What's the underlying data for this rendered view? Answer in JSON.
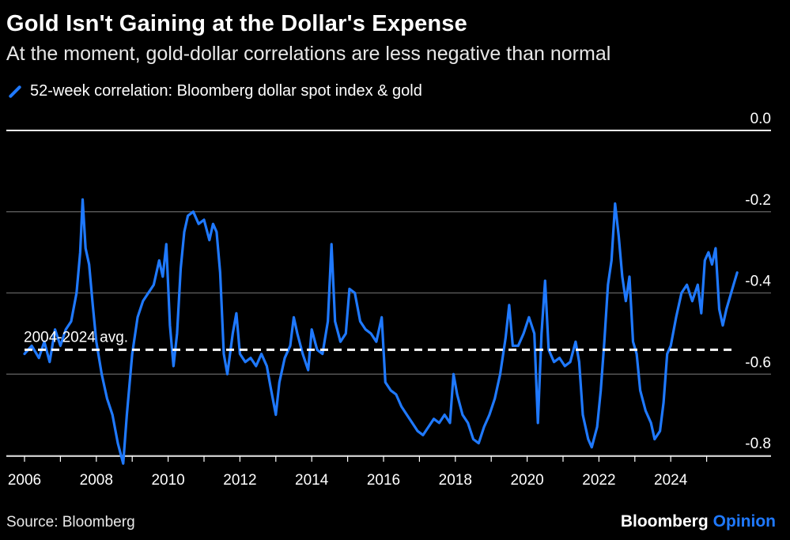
{
  "title": "Gold Isn't Gaining at the Dollar's Expense",
  "subtitle": "At the moment, gold-dollar correlations are less negative than normal",
  "source": "Source: Bloomberg",
  "brand": {
    "name": "Bloomberg",
    "suffix": "Opinion"
  },
  "colors": {
    "series": "#1f79ff",
    "background": "#000000",
    "grid": "#555555",
    "text": "#ffffff"
  },
  "chart_data": {
    "type": "line",
    "title": "Gold Isn't Gaining at the Dollar's Expense",
    "subtitle": "At the moment, gold-dollar correlations are less negative than normal",
    "xlabel": "",
    "ylabel": "",
    "xlim": [
      2006,
      2026
    ],
    "ylim": [
      -0.8,
      0.0
    ],
    "y_ticks": [
      0.0,
      -0.2,
      -0.4,
      -0.6,
      -0.8
    ],
    "y_tick_labels": [
      "0.0",
      "-0.2",
      "-0.4",
      "-0.6",
      "-0.8"
    ],
    "x_ticks": [
      2006,
      2008,
      2010,
      2012,
      2014,
      2016,
      2018,
      2020,
      2022,
      2024
    ],
    "x_tick_labels": [
      "2006",
      "2008",
      "2010",
      "2012",
      "2014",
      "2016",
      "2018",
      "2020",
      "2022",
      "2024"
    ],
    "y_axis_position": "right",
    "grid": true,
    "legend_position": "top-left",
    "series": [
      {
        "name": "52-week correlation: Bloomberg dollar spot index & gold",
        "color": "#1f79ff",
        "points": [
          [
            2006.0,
            -0.55
          ],
          [
            2006.2,
            -0.53
          ],
          [
            2006.4,
            -0.56
          ],
          [
            2006.55,
            -0.52
          ],
          [
            2006.7,
            -0.57
          ],
          [
            2006.85,
            -0.49
          ],
          [
            2007.0,
            -0.53
          ],
          [
            2007.15,
            -0.49
          ],
          [
            2007.3,
            -0.47
          ],
          [
            2007.45,
            -0.4
          ],
          [
            2007.55,
            -0.3
          ],
          [
            2007.62,
            -0.17
          ],
          [
            2007.7,
            -0.29
          ],
          [
            2007.8,
            -0.33
          ],
          [
            2007.9,
            -0.43
          ],
          [
            2008.0,
            -0.52
          ],
          [
            2008.15,
            -0.6
          ],
          [
            2008.3,
            -0.66
          ],
          [
            2008.45,
            -0.7
          ],
          [
            2008.6,
            -0.77
          ],
          [
            2008.75,
            -0.82
          ],
          [
            2008.85,
            -0.7
          ],
          [
            2009.0,
            -0.55
          ],
          [
            2009.15,
            -0.46
          ],
          [
            2009.3,
            -0.42
          ],
          [
            2009.45,
            -0.4
          ],
          [
            2009.6,
            -0.38
          ],
          [
            2009.75,
            -0.32
          ],
          [
            2009.85,
            -0.36
          ],
          [
            2009.95,
            -0.28
          ],
          [
            2010.05,
            -0.48
          ],
          [
            2010.15,
            -0.58
          ],
          [
            2010.25,
            -0.5
          ],
          [
            2010.35,
            -0.34
          ],
          [
            2010.45,
            -0.25
          ],
          [
            2010.55,
            -0.21
          ],
          [
            2010.7,
            -0.2
          ],
          [
            2010.85,
            -0.23
          ],
          [
            2011.0,
            -0.22
          ],
          [
            2011.15,
            -0.27
          ],
          [
            2011.25,
            -0.23
          ],
          [
            2011.35,
            -0.25
          ],
          [
            2011.45,
            -0.35
          ],
          [
            2011.55,
            -0.55
          ],
          [
            2011.65,
            -0.6
          ],
          [
            2011.8,
            -0.5
          ],
          [
            2011.9,
            -0.45
          ],
          [
            2012.0,
            -0.55
          ],
          [
            2012.15,
            -0.57
          ],
          [
            2012.3,
            -0.56
          ],
          [
            2012.45,
            -0.58
          ],
          [
            2012.6,
            -0.55
          ],
          [
            2012.75,
            -0.58
          ],
          [
            2012.85,
            -0.63
          ],
          [
            2013.0,
            -0.7
          ],
          [
            2013.1,
            -0.62
          ],
          [
            2013.25,
            -0.56
          ],
          [
            2013.4,
            -0.53
          ],
          [
            2013.5,
            -0.46
          ],
          [
            2013.6,
            -0.5
          ],
          [
            2013.75,
            -0.55
          ],
          [
            2013.9,
            -0.59
          ],
          [
            2014.0,
            -0.49
          ],
          [
            2014.15,
            -0.54
          ],
          [
            2014.3,
            -0.55
          ],
          [
            2014.45,
            -0.47
          ],
          [
            2014.55,
            -0.28
          ],
          [
            2014.65,
            -0.47
          ],
          [
            2014.8,
            -0.52
          ],
          [
            2014.95,
            -0.5
          ],
          [
            2015.05,
            -0.39
          ],
          [
            2015.2,
            -0.4
          ],
          [
            2015.35,
            -0.47
          ],
          [
            2015.5,
            -0.49
          ],
          [
            2015.65,
            -0.5
          ],
          [
            2015.8,
            -0.52
          ],
          [
            2015.95,
            -0.46
          ],
          [
            2016.05,
            -0.62
          ],
          [
            2016.2,
            -0.64
          ],
          [
            2016.35,
            -0.65
          ],
          [
            2016.5,
            -0.68
          ],
          [
            2016.65,
            -0.7
          ],
          [
            2016.8,
            -0.72
          ],
          [
            2016.95,
            -0.74
          ],
          [
            2017.1,
            -0.75
          ],
          [
            2017.25,
            -0.73
          ],
          [
            2017.4,
            -0.71
          ],
          [
            2017.55,
            -0.72
          ],
          [
            2017.7,
            -0.7
          ],
          [
            2017.85,
            -0.72
          ],
          [
            2017.95,
            -0.6
          ],
          [
            2018.05,
            -0.65
          ],
          [
            2018.2,
            -0.7
          ],
          [
            2018.35,
            -0.72
          ],
          [
            2018.5,
            -0.76
          ],
          [
            2018.65,
            -0.77
          ],
          [
            2018.8,
            -0.73
          ],
          [
            2018.95,
            -0.7
          ],
          [
            2019.1,
            -0.66
          ],
          [
            2019.25,
            -0.6
          ],
          [
            2019.4,
            -0.51
          ],
          [
            2019.5,
            -0.43
          ],
          [
            2019.6,
            -0.53
          ],
          [
            2019.75,
            -0.53
          ],
          [
            2019.9,
            -0.5
          ],
          [
            2020.05,
            -0.46
          ],
          [
            2020.2,
            -0.5
          ],
          [
            2020.3,
            -0.72
          ],
          [
            2020.4,
            -0.5
          ],
          [
            2020.5,
            -0.37
          ],
          [
            2020.6,
            -0.54
          ],
          [
            2020.75,
            -0.57
          ],
          [
            2020.9,
            -0.56
          ],
          [
            2021.05,
            -0.58
          ],
          [
            2021.2,
            -0.57
          ],
          [
            2021.35,
            -0.52
          ],
          [
            2021.45,
            -0.57
          ],
          [
            2021.55,
            -0.7
          ],
          [
            2021.7,
            -0.76
          ],
          [
            2021.8,
            -0.78
          ],
          [
            2021.95,
            -0.73
          ],
          [
            2022.05,
            -0.64
          ],
          [
            2022.15,
            -0.52
          ],
          [
            2022.25,
            -0.38
          ],
          [
            2022.35,
            -0.32
          ],
          [
            2022.45,
            -0.18
          ],
          [
            2022.55,
            -0.26
          ],
          [
            2022.65,
            -0.36
          ],
          [
            2022.75,
            -0.42
          ],
          [
            2022.85,
            -0.36
          ],
          [
            2022.95,
            -0.52
          ],
          [
            2023.05,
            -0.55
          ],
          [
            2023.15,
            -0.64
          ],
          [
            2023.3,
            -0.69
          ],
          [
            2023.45,
            -0.72
          ],
          [
            2023.55,
            -0.76
          ],
          [
            2023.7,
            -0.74
          ],
          [
            2023.8,
            -0.67
          ],
          [
            2023.9,
            -0.55
          ],
          [
            2024.0,
            -0.53
          ],
          [
            2024.15,
            -0.46
          ],
          [
            2024.3,
            -0.4
          ],
          [
            2024.45,
            -0.38
          ],
          [
            2024.6,
            -0.42
          ],
          [
            2024.75,
            -0.38
          ],
          [
            2024.85,
            -0.45
          ],
          [
            2024.95,
            -0.32
          ],
          [
            2025.05,
            -0.3
          ],
          [
            2025.15,
            -0.33
          ],
          [
            2025.25,
            -0.29
          ],
          [
            2025.35,
            -0.44
          ],
          [
            2025.45,
            -0.48
          ],
          [
            2025.55,
            -0.44
          ],
          [
            2025.65,
            -0.41
          ],
          [
            2025.75,
            -0.38
          ],
          [
            2025.85,
            -0.35
          ]
        ]
      }
    ],
    "annotations": [
      {
        "label": "2004-2024 avg.",
        "type": "horizontal-dashed-line",
        "y": -0.54,
        "color": "#ffffff"
      }
    ]
  }
}
